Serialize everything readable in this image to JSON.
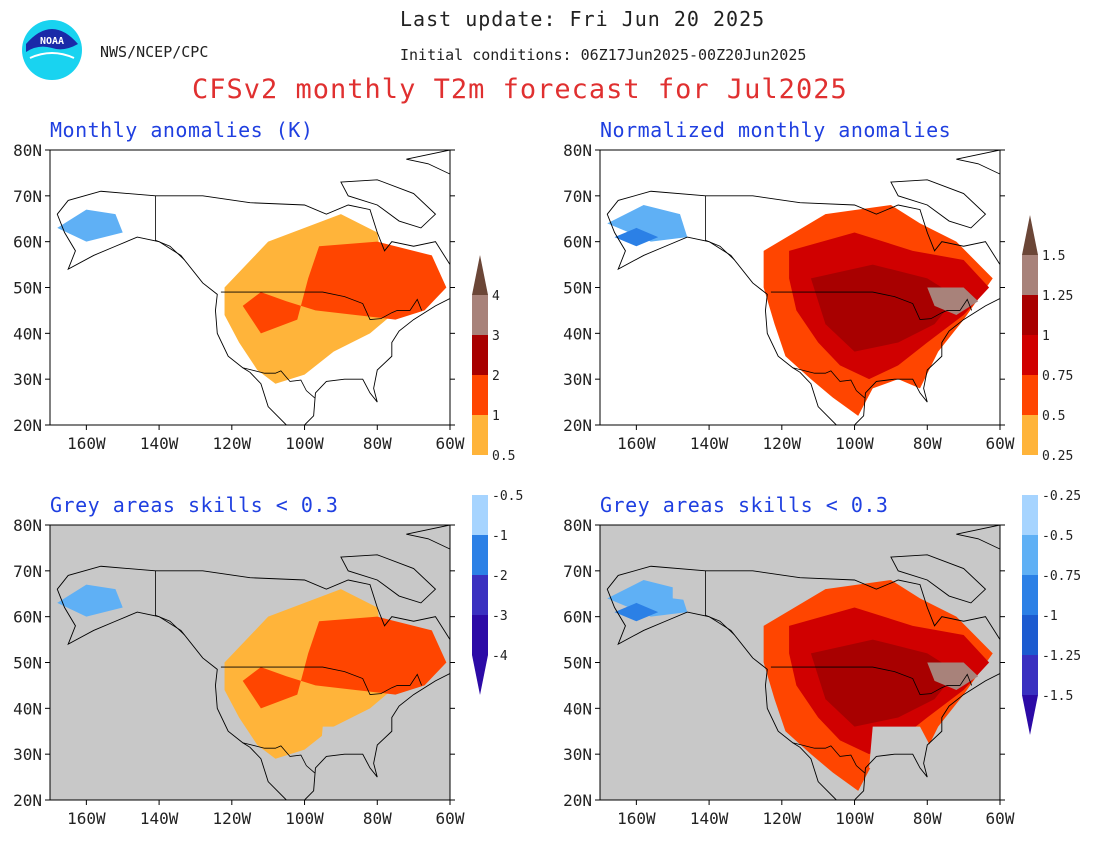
{
  "header": {
    "last_update": "Last update: Fri Jun 20 2025",
    "initial_conditions": "Initial conditions: 06Z17Jun2025-00Z20Jun2025",
    "agency": "NWS/NCEP/CPC",
    "title": "CFSv2 monthly T2m forecast for Jul2025",
    "logo_text": "NOAA"
  },
  "panels": [
    {
      "title": "Monthly anomalies (K)"
    },
    {
      "title": "Normalized monthly anomalies"
    },
    {
      "title": "Grey areas skills < 0.3"
    },
    {
      "title": "Grey areas skills < 0.3"
    }
  ],
  "axes": {
    "lat_labels": [
      "80N",
      "70N",
      "60N",
      "50N",
      "40N",
      "30N",
      "20N"
    ],
    "lon_labels": [
      "160W",
      "140W",
      "120W",
      "100W",
      "80W",
      "60W"
    ]
  },
  "colorbars": {
    "anomaly_labels": [
      "4",
      "3",
      "2",
      "1",
      "0.5",
      "-0.5",
      "-1",
      "-2",
      "-3",
      "-4"
    ],
    "normalized_labels": [
      "1.5",
      "1.25",
      "1",
      "0.75",
      "0.5",
      "0.25",
      "-0.25",
      "-0.5",
      "-0.75",
      "-1",
      "-1.25",
      "-1.5"
    ],
    "colors": [
      "#6b4637",
      "#a8827a",
      "#a80000",
      "#d00000",
      "#ff4500",
      "#ffb43a",
      "#ffffff",
      "#a6d4ff",
      "#5fb0f5",
      "#2b80e6",
      "#1c5bd0",
      "#3a30c0",
      "#2c0aa6"
    ]
  },
  "colors": {
    "title_red": "#e03030",
    "panel_title_blue": "#1f3fe0",
    "skill_grey": "#c8c8c8"
  }
}
